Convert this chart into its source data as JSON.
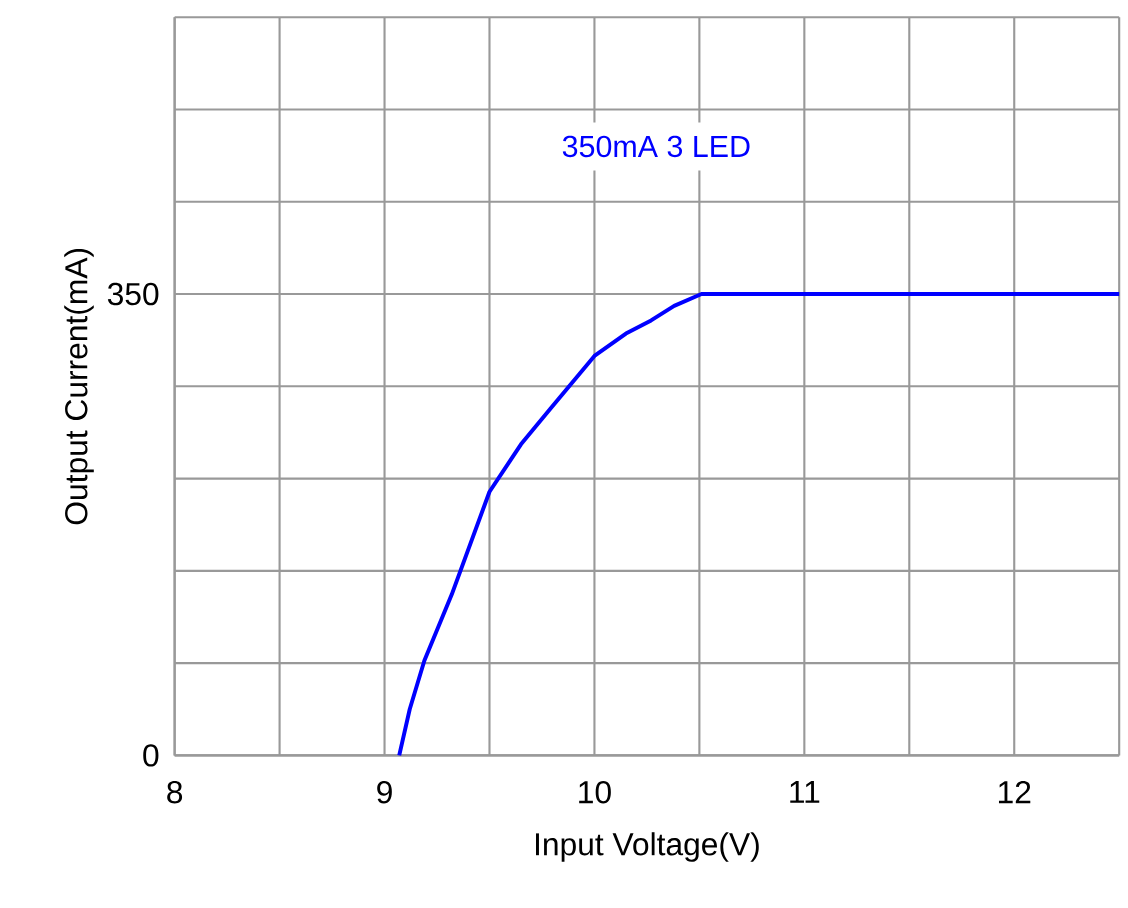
{
  "chart_data": {
    "type": "line",
    "xlabel": "Input Voltage(V)",
    "ylabel": "Output Current(mA)",
    "annotations": [
      "350mA  3 LED"
    ],
    "series": [
      {
        "color": "#0000ff",
        "x": [
          9.07,
          9.12,
          9.19,
          9.32,
          9.5,
          9.65,
          9.79,
          10,
          10.15,
          10.27,
          10.38,
          10.51,
          12.5
        ],
        "values": [
          0,
          35,
          72,
          122,
          200,
          236,
          263,
          303,
          320,
          330,
          341,
          350,
          350
        ]
      }
    ],
    "xlim": [
      8,
      12.5
    ],
    "xticks": [
      8,
      {
        "value": 8.5,
        "label": null
      },
      9,
      {
        "value": 9.5,
        "label": null
      },
      10,
      {
        "value": 10.5,
        "label": null
      },
      11,
      {
        "value": 11.5,
        "label": null
      },
      12,
      {
        "value": 12.5,
        "label": null
      }
    ],
    "ylim": [
      0,
      560
    ],
    "yticks": [
      0,
      {
        "value": 70,
        "label": null
      },
      {
        "value": 140,
        "label": null
      },
      {
        "value": 210,
        "label": null
      },
      {
        "value": 280,
        "label": null
      },
      350,
      {
        "value": 420,
        "label": null
      },
      {
        "value": 490,
        "label": null
      },
      {
        "value": 560,
        "label": null
      }
    ],
    "grid": true,
    "marker": "none",
    "line_style": "solid"
  }
}
